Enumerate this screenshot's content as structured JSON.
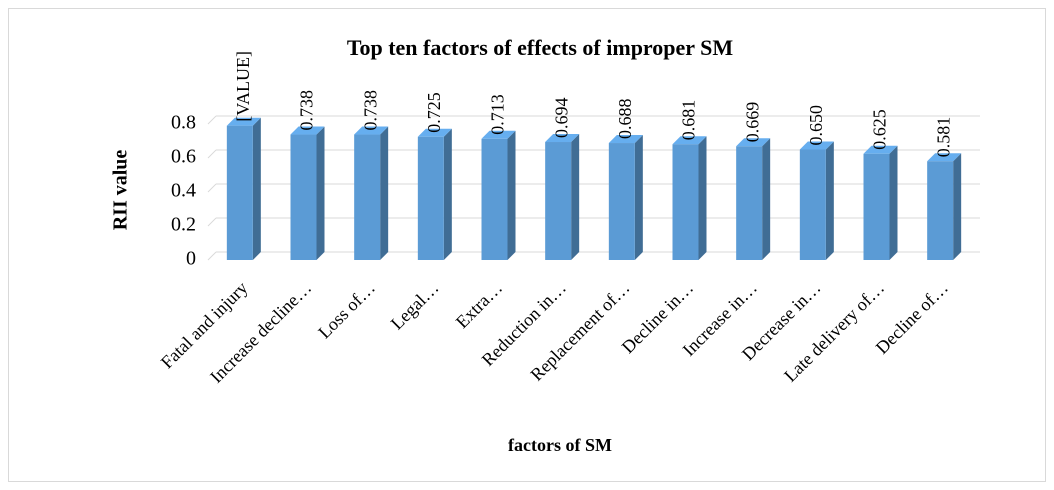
{
  "chart_data": {
    "type": "bar",
    "title": "Top ten factors of effects of improper SM",
    "x_label": "factors of SM",
    "y_label": "RII value",
    "categories": [
      "Fatal and injury",
      "Increase decline…",
      "Loss of…",
      "Legal…",
      "Extra…",
      "Reduction in…",
      "Replacement of…",
      "Decline in…",
      "Increase in…",
      "Decrease in…",
      "Late delivery of…",
      "Decline of…"
    ],
    "values": [
      0.79,
      0.738,
      0.738,
      0.725,
      0.713,
      0.694,
      0.688,
      0.681,
      0.669,
      0.65,
      0.625,
      0.581
    ],
    "value_labels": [
      "[VALUE]",
      "0.738",
      "0.738",
      "0.725",
      "0.713",
      "0.694",
      "0.688",
      "0.681",
      "0.669",
      "0.650",
      "0.625",
      "0.581"
    ],
    "color": "#5b9bd5",
    "ylim": [
      0,
      0.8
    ],
    "yticks": [
      0,
      0.2,
      0.4,
      0.6,
      0.8
    ],
    "grid": true
  }
}
